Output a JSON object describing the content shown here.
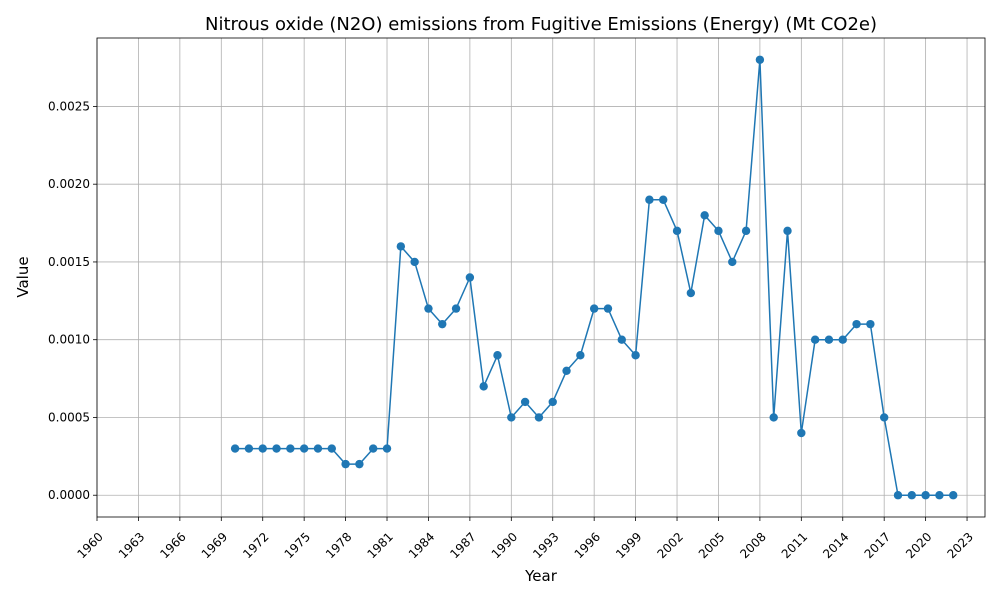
{
  "chart_data": {
    "type": "line",
    "title": "Nitrous oxide (N2O) emissions from Fugitive Emissions (Energy) (Mt CO2e)",
    "xlabel": "Year",
    "ylabel": "Value",
    "xlim": [
      1960,
      2024.3
    ],
    "ylim": [
      -0.00014,
      0.00294
    ],
    "grid": true,
    "color": "#1f77b4",
    "xticks": [
      1960,
      1963,
      1966,
      1969,
      1972,
      1975,
      1978,
      1981,
      1984,
      1987,
      1990,
      1993,
      1996,
      1999,
      2002,
      2005,
      2008,
      2011,
      2014,
      2017,
      2020,
      2023
    ],
    "yticks": [
      0.0,
      0.0005,
      0.001,
      0.0015,
      0.002,
      0.0025
    ],
    "ytick_labels": [
      "0.0000",
      "0.0005",
      "0.0010",
      "0.0015",
      "0.0020",
      "0.0025"
    ],
    "x": [
      1970,
      1971,
      1972,
      1973,
      1974,
      1975,
      1976,
      1977,
      1978,
      1979,
      1980,
      1981,
      1982,
      1983,
      1984,
      1985,
      1986,
      1987,
      1988,
      1989,
      1990,
      1991,
      1992,
      1993,
      1994,
      1995,
      1996,
      1997,
      1998,
      1999,
      2000,
      2001,
      2002,
      2003,
      2004,
      2005,
      2006,
      2007,
      2008,
      2009,
      2010,
      2011,
      2012,
      2013,
      2014,
      2015,
      2016,
      2017,
      2018,
      2019,
      2020,
      2021,
      2022
    ],
    "y": [
      0.0003,
      0.0003,
      0.0003,
      0.0003,
      0.0003,
      0.0003,
      0.0003,
      0.0003,
      0.0002,
      0.0002,
      0.0003,
      0.0003,
      0.0016,
      0.0015,
      0.0012,
      0.0011,
      0.0012,
      0.0014,
      0.0007,
      0.0009,
      0.0005,
      0.0006,
      0.0005,
      0.0006,
      0.0008,
      0.0009,
      0.0012,
      0.0012,
      0.001,
      0.0009,
      0.0019,
      0.0019,
      0.0017,
      0.0013,
      0.0018,
      0.0017,
      0.0015,
      0.0017,
      0.0028,
      0.0005,
      0.0017,
      0.0004,
      0.001,
      0.001,
      0.001,
      0.0011,
      0.0011,
      0.0005,
      0.0,
      0.0,
      0.0,
      0.0,
      0.0
    ]
  }
}
